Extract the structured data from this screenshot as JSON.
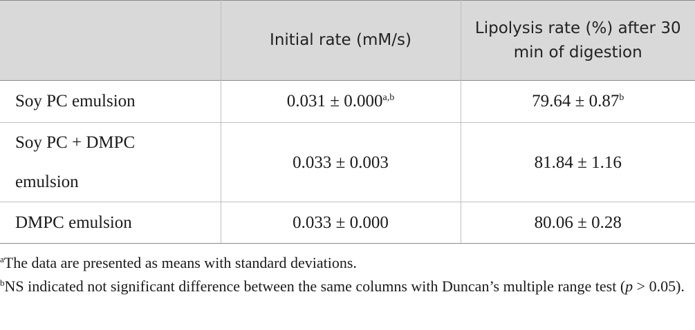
{
  "table": {
    "headers": [
      "",
      "Initial rate (mM/s)",
      "Lipolysis rate (%) after 30 min of digestion"
    ],
    "rows": [
      {
        "label": "Soy PC emulsion",
        "initial_rate": "0.031 ± 0.000",
        "initial_rate_sup": "a,b",
        "lipolysis_rate": "79.64 ± 0.87",
        "lipolysis_rate_sup": "b"
      },
      {
        "label_line1": "Soy PC + DMPC",
        "label_line2": "emulsion",
        "initial_rate": "0.033 ± 0.003",
        "lipolysis_rate": "81.84 ± 1.16"
      },
      {
        "label": "DMPC emulsion",
        "initial_rate": "0.033 ± 0.000",
        "lipolysis_rate": "80.06 ± 0.28"
      }
    ]
  },
  "footnotes": {
    "a_marker": "a",
    "a_text": "The data are presented as means with standard deviations.",
    "b_marker": "b",
    "b_text_1": "NS indicated not significant difference between the same columns with Duncan’s multiple range test (",
    "b_p": "p",
    "b_text_2": " > 0.05)."
  }
}
